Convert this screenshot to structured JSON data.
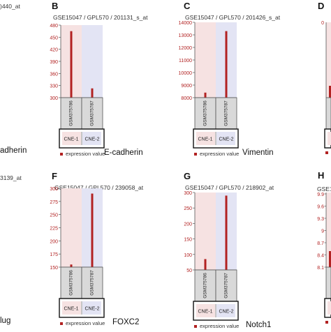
{
  "colors": {
    "bar": "#b22222",
    "cne1_bg": "#f6e2e2",
    "cne2_bg": "#e3e4f4",
    "sample_box": "#d9d9d9",
    "axis": "#555555",
    "tick_text": "#b22222"
  },
  "fragments": {
    "topleft_title": ")440_at",
    "midleft_title": "3139_at",
    "left_gene_top": "adherin",
    "left_gene_bottom": "lug",
    "letter_d": "D",
    "letter_h": "H",
    "right_title_bottom": "GSE1",
    "right_ticks_bottom": [
      "9.9",
      "9.6",
      "9.3",
      "9",
      "8.7",
      "8.4",
      "8.1"
    ],
    "right_tick_top": "0"
  },
  "legend_label": "expression value",
  "chart_data": [
    {
      "type": "bar",
      "letter": "B",
      "title": "GSE15047 / GPL570 / 201131_s_at",
      "gene": "E-cadherin",
      "categories": [
        "GSM375786",
        "GSM375787"
      ],
      "groups": [
        "CNE-1",
        "CNE-2"
      ],
      "values": [
        465,
        323
      ],
      "ylim": [
        300,
        480
      ],
      "ticks": [
        "480",
        "450",
        "420",
        "390",
        "360",
        "330",
        "300"
      ],
      "tick_values": [
        480,
        450,
        420,
        390,
        360,
        330,
        300
      ]
    },
    {
      "type": "bar",
      "letter": "C",
      "title": "GSE15047 / GPL570 / 201426_s_at",
      "gene": "Vimentin",
      "categories": [
        "GSM375786",
        "GSM375787"
      ],
      "groups": [
        "CNE-1",
        "CNE-2"
      ],
      "values": [
        8400,
        13300
      ],
      "ylim": [
        8000,
        14000
      ],
      "ticks": [
        "14000",
        "13000",
        "12000",
        "11000",
        "10000",
        "9000",
        "8000"
      ],
      "tick_values": [
        14000,
        13000,
        12000,
        11000,
        10000,
        9000,
        8000
      ]
    },
    {
      "type": "bar",
      "letter": "F",
      "title": "GSE15047 / GPL570 / 239058_at",
      "gene": "FOXC2",
      "categories": [
        "GSM375786",
        "GSM375787"
      ],
      "groups": [
        "CNE-1",
        "CNE-2"
      ],
      "values": [
        155,
        290
      ],
      "ylim": [
        150,
        300
      ],
      "ticks": [
        "300",
        "275",
        "250",
        "225",
        "200",
        "175",
        "150"
      ],
      "tick_values": [
        300,
        275,
        250,
        225,
        200,
        175,
        150
      ]
    },
    {
      "type": "bar",
      "letter": "G",
      "title": "GSE15047 / GPL570 / 218902_at",
      "gene": "Notch1",
      "categories": [
        "GSM375786",
        "GSM375787"
      ],
      "groups": [
        "CNE-1",
        "CNE-2"
      ],
      "values": [
        85,
        290
      ],
      "ylim": [
        50,
        300
      ],
      "ticks": [
        "300",
        "250",
        "200",
        "150",
        "100",
        "50"
      ],
      "tick_values": [
        300,
        250,
        200,
        150,
        100,
        50
      ]
    }
  ]
}
